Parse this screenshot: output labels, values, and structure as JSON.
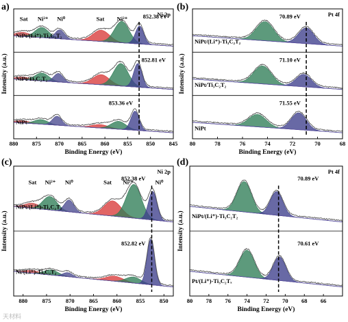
{
  "chart_data": [
    {
      "panel": "a)",
      "type": "line",
      "corner_label": "Ni 2p",
      "xlabel": "Binding Energy (eV)",
      "ylabel": "Intensity (a.u.)",
      "xlim": [
        880,
        845
      ],
      "xticks": [
        880,
        875,
        870,
        865,
        860,
        855,
        850,
        845
      ],
      "tick_labels": [
        "880",
        "875",
        "870",
        "865",
        "860",
        "855",
        "850",
        "845"
      ],
      "peak_labels": [
        {
          "text": "Sat",
          "x": 877.8,
          "row": 0
        },
        {
          "text": "Ni²⁺",
          "x": 873.6,
          "row": 0
        },
        {
          "text": "Ni⁰",
          "x": 869.6,
          "row": 0
        },
        {
          "text": "Sat",
          "x": 861.0,
          "row": 0
        },
        {
          "text": "Ni²⁺",
          "x": 856.2,
          "row": 0
        },
        {
          "text": "852.38 eV",
          "x": 849.0,
          "row": 0
        },
        {
          "text": "852.81 eV",
          "x": 849.3,
          "row": 1
        },
        {
          "text": "853.36 eV",
          "x": 856.5,
          "row": 2
        }
      ],
      "dashed_marker_x": 852.5,
      "series": [
        {
          "name": "NiPt/(Li⁺)-Ti₃C₂T₂",
          "components": [
            {
              "center": 878.0,
              "height": 0.18,
              "width": 1.6,
              "color": "#c94a4a"
            },
            {
              "center": 873.8,
              "height": 0.45,
              "width": 1.5,
              "color": "#2f7d57"
            },
            {
              "center": 869.9,
              "height": 0.4,
              "width": 1.0,
              "color": "#4a4a8f"
            },
            {
              "center": 860.8,
              "height": 0.5,
              "width": 1.8,
              "color": "#d93a3a"
            },
            {
              "center": 856.3,
              "height": 0.95,
              "width": 1.6,
              "color": "#2f7d57"
            },
            {
              "center": 852.4,
              "height": 0.8,
              "width": 0.9,
              "color": "#3d3f8c"
            }
          ]
        },
        {
          "name": "NiPt/Ti₃C₂T₂",
          "components": [
            {
              "center": 878.0,
              "height": 0.12,
              "width": 1.6,
              "color": "#c94a4a"
            },
            {
              "center": 873.8,
              "height": 0.35,
              "width": 1.5,
              "color": "#2f7d57"
            },
            {
              "center": 870.2,
              "height": 0.38,
              "width": 1.0,
              "color": "#4a4a8f"
            },
            {
              "center": 860.8,
              "height": 0.45,
              "width": 1.8,
              "color": "#d93a3a"
            },
            {
              "center": 856.5,
              "height": 1.0,
              "width": 1.6,
              "color": "#2f7d57"
            },
            {
              "center": 852.8,
              "height": 1.05,
              "width": 0.9,
              "color": "#3d3f8c"
            }
          ]
        },
        {
          "name": "NiPt",
          "components": [
            {
              "center": 878.0,
              "height": 0.1,
              "width": 1.6,
              "color": "#c94a4a"
            },
            {
              "center": 874.0,
              "height": 0.2,
              "width": 1.5,
              "color": "#2f7d57"
            },
            {
              "center": 870.5,
              "height": 0.4,
              "width": 1.0,
              "color": "#4a4a8f"
            },
            {
              "center": 861.0,
              "height": 0.15,
              "width": 1.8,
              "color": "#d93a3a"
            },
            {
              "center": 857.0,
              "height": 0.35,
              "width": 1.6,
              "color": "#2f7d57"
            },
            {
              "center": 853.4,
              "height": 0.85,
              "width": 0.9,
              "color": "#3d3f8c"
            }
          ]
        }
      ]
    },
    {
      "panel": "(b)",
      "type": "line",
      "corner_label": "Pt 4f",
      "xlabel": "Binding Energy (eV)",
      "ylabel": "Intensity (a.u.)",
      "xlim": [
        80,
        68
      ],
      "xticks": [
        80,
        78,
        76,
        74,
        72,
        70,
        68
      ],
      "tick_labels": [
        "80",
        "78",
        "76",
        "74",
        "72",
        "70",
        "68"
      ],
      "peak_labels": [
        {
          "text": "70.89 eV",
          "x": 72.2,
          "row": 0
        },
        {
          "text": "71.10 eV",
          "x": 72.2,
          "row": 1
        },
        {
          "text": "71.55 eV",
          "x": 72.2,
          "row": 2
        }
      ],
      "dashed_marker_x": 70.9,
      "series": [
        {
          "name": "NiPt/(Li⁺)-Ti₃C₂T₂",
          "components": [
            {
              "center": 74.2,
              "height": 0.85,
              "width": 0.7,
              "color": "#2f7d57"
            },
            {
              "center": 70.9,
              "height": 0.7,
              "width": 0.6,
              "color": "#3d3f8c"
            }
          ]
        },
        {
          "name": "NiPt/Ti₃C₂T₂",
          "components": [
            {
              "center": 74.4,
              "height": 0.8,
              "width": 0.7,
              "color": "#2f7d57"
            },
            {
              "center": 71.1,
              "height": 0.55,
              "width": 0.6,
              "color": "#3d3f8c"
            }
          ]
        },
        {
          "name": "NiPt",
          "components": [
            {
              "center": 74.8,
              "height": 0.55,
              "width": 0.7,
              "color": "#2f7d57"
            },
            {
              "center": 71.5,
              "height": 0.75,
              "width": 0.6,
              "color": "#3d3f8c"
            }
          ]
        }
      ]
    },
    {
      "panel": "(c)",
      "type": "line",
      "corner_label": "Ni 2p",
      "xlabel": "Binding Energy (eV)",
      "ylabel": "Intensity (a.u.)",
      "xlim": [
        882,
        848
      ],
      "xticks": [
        880,
        875,
        870,
        865,
        860,
        855,
        850
      ],
      "tick_labels": [
        "880",
        "875",
        "870",
        "865",
        "860",
        "855",
        "850"
      ],
      "peak_labels": [
        {
          "text": "Sat",
          "x": 878.0,
          "row": 0
        },
        {
          "text": "Ni²⁺",
          "x": 874.2,
          "row": 0
        },
        {
          "text": "Ni⁰",
          "x": 870.2,
          "row": 0
        },
        {
          "text": "Sat",
          "x": 862.0,
          "row": 0
        },
        {
          "text": "Ni²⁺",
          "x": 857.6,
          "row": 0
        },
        {
          "text": "852.38 eV",
          "x": 856.5,
          "row": 0
        },
        {
          "text": "Ni⁰",
          "x": 851.0,
          "row": 0
        },
        {
          "text": "852.82 eV",
          "x": 856.5,
          "row": 1
        }
      ],
      "dashed_marker_x": 852.6,
      "series": [
        {
          "name": "NiPt/(Li⁺)-Ti₃C₂T₂",
          "components": [
            {
              "center": 878.0,
              "height": 0.15,
              "width": 1.6,
              "color": "#c94a4a"
            },
            {
              "center": 874.3,
              "height": 0.4,
              "width": 1.5,
              "color": "#2f7d57"
            },
            {
              "center": 870.2,
              "height": 0.35,
              "width": 1.0,
              "color": "#4a4a8f"
            },
            {
              "center": 860.9,
              "height": 0.45,
              "width": 1.8,
              "color": "#d93a3a"
            },
            {
              "center": 856.4,
              "height": 1.0,
              "width": 1.6,
              "color": "#2f7d57"
            },
            {
              "center": 852.4,
              "height": 0.85,
              "width": 0.9,
              "color": "#3d3f8c"
            }
          ]
        },
        {
          "name": "Ni/(Li⁺)-Ti₃C₂T₂",
          "components": [
            {
              "center": 878.0,
              "height": 0.08,
              "width": 1.6,
              "color": "#c94a4a"
            },
            {
              "center": 874.0,
              "height": 0.15,
              "width": 1.5,
              "color": "#2f7d57"
            },
            {
              "center": 870.5,
              "height": 0.12,
              "width": 1.0,
              "color": "#4a4a8f"
            },
            {
              "center": 860.5,
              "height": 0.15,
              "width": 1.8,
              "color": "#d93a3a"
            },
            {
              "center": 856.5,
              "height": 0.18,
              "width": 1.6,
              "color": "#2f7d57"
            },
            {
              "center": 852.8,
              "height": 1.35,
              "width": 0.8,
              "color": "#3d3f8c"
            }
          ]
        }
      ]
    },
    {
      "panel": "(d)",
      "type": "line",
      "corner_label": "Pt 4f",
      "xlabel": "Binding Energy (eV)",
      "ylabel": "Intensity (a.u.)",
      "xlim": [
        80,
        64
      ],
      "xticks": [
        80,
        78,
        76,
        74,
        72,
        70,
        68,
        66
      ],
      "tick_labels": [
        "80",
        "78",
        "76",
        "74",
        "72",
        "70",
        "68",
        "66"
      ],
      "peak_labels": [
        {
          "text": "70.89 eV",
          "x": 67.6,
          "row": 0
        },
        {
          "text": "70.61 eV",
          "x": 67.6,
          "row": 1
        }
      ],
      "dashed_marker_x": 70.7,
      "series": [
        {
          "name": "NiPt/(Li⁺)-Ti₃C₂T₂",
          "components": [
            {
              "center": 74.3,
              "height": 0.9,
              "width": 0.75,
              "color": "#2f7d57"
            },
            {
              "center": 70.9,
              "height": 0.7,
              "width": 0.65,
              "color": "#3d3f8c"
            }
          ]
        },
        {
          "name": "Pt/(Li⁺)-Ti₃C₂Tₓ",
          "components": [
            {
              "center": 74.0,
              "height": 0.8,
              "width": 0.75,
              "color": "#2f7d57"
            },
            {
              "center": 70.6,
              "height": 0.7,
              "width": 0.65,
              "color": "#3d3f8c"
            }
          ]
        }
      ]
    }
  ],
  "watermark": "天材料"
}
